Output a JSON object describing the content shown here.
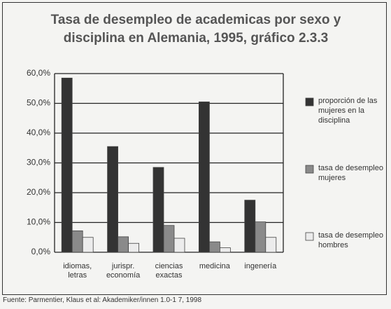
{
  "chart_data": {
    "type": "bar",
    "title": "Tasa de desempleo de academicas por sexo y disciplina en Alemania, 1995, gráfico 2.3.3",
    "categories": [
      "idiomas, letras",
      "jurispr. economía",
      "ciencias exactas",
      "medicina",
      "ingenería"
    ],
    "series": [
      {
        "name": "proporción de las mujeres en la disciplina",
        "color": "#333333",
        "values": [
          58.5,
          35.5,
          28.5,
          50.5,
          17.5
        ]
      },
      {
        "name": "tasa de desempleo mujeres",
        "color": "#8a8a8a",
        "values": [
          7.2,
          5.2,
          9.0,
          3.5,
          10.2
        ]
      },
      {
        "name": "tasa de desempleo hombres",
        "color": "#ececec",
        "values": [
          5.0,
          3.0,
          4.7,
          1.5,
          5.0
        ]
      }
    ],
    "ylim": [
      0,
      60
    ],
    "yticks": [
      {
        "value": 0,
        "label": "0,0%"
      },
      {
        "value": 10,
        "label": "10,0%"
      },
      {
        "value": 20,
        "label": "20,0%"
      },
      {
        "value": 30,
        "label": "30,0%"
      },
      {
        "value": 40,
        "label": "40,0%"
      },
      {
        "value": 50,
        "label": "50,0%"
      },
      {
        "value": 60,
        "label": "60,0%"
      }
    ],
    "grid": true,
    "legend": "right",
    "source": "Fuente: Parmentier, Klaus et al: Akademiker/innen 1.0-1 7, 1998"
  }
}
